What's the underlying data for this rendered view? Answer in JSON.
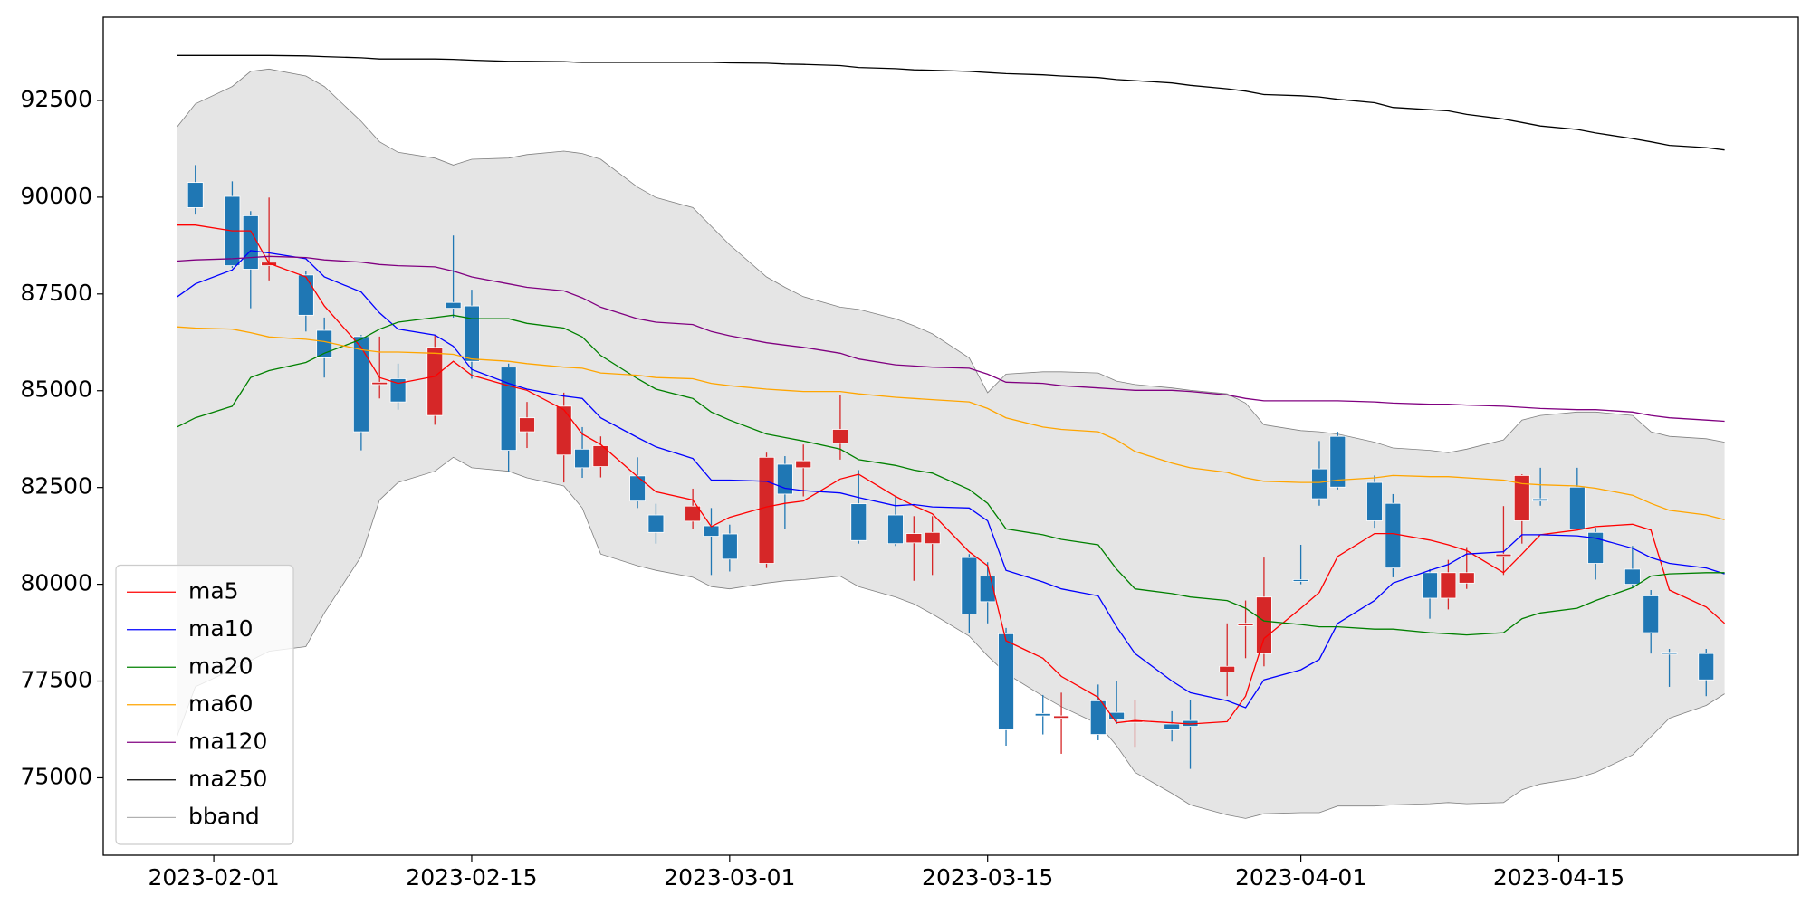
{
  "chart_data": {
    "type": "candlestick",
    "x": [
      "2023-01-30",
      "2023-01-31",
      "2023-02-02",
      "2023-02-03",
      "2023-02-04",
      "2023-02-06",
      "2023-02-07",
      "2023-02-09",
      "2023-02-10",
      "2023-02-11",
      "2023-02-13",
      "2023-02-14",
      "2023-02-15",
      "2023-02-17",
      "2023-02-18",
      "2023-02-20",
      "2023-02-21",
      "2023-02-22",
      "2023-02-24",
      "2023-02-25",
      "2023-02-27",
      "2023-02-28",
      "2023-03-01",
      "2023-03-03",
      "2023-03-04",
      "2023-03-05",
      "2023-03-07",
      "2023-03-08",
      "2023-03-10",
      "2023-03-11",
      "2023-03-12",
      "2023-03-14",
      "2023-03-15",
      "2023-03-16",
      "2023-03-18",
      "2023-03-19",
      "2023-03-21",
      "2023-03-22",
      "2023-03-23",
      "2023-03-25",
      "2023-03-26",
      "2023-03-28",
      "2023-03-29",
      "2023-03-30",
      "2023-04-01",
      "2023-04-02",
      "2023-04-03",
      "2023-04-05",
      "2023-04-06",
      "2023-04-08",
      "2023-04-09",
      "2023-04-10",
      "2023-04-12",
      "2023-04-13",
      "2023-04-14",
      "2023-04-16",
      "2023-04-17",
      "2023-04-19",
      "2023-04-20",
      "2023-04-21",
      "2023-04-23",
      "2023-04-24"
    ],
    "xlim": [
      "2023-01-26",
      "2023-04-28"
    ],
    "xticks": [
      "2023-02-01",
      "2023-02-15",
      "2023-03-01",
      "2023-03-15",
      "2023-04-01",
      "2023-04-15"
    ],
    "ylim": [
      73000,
      94650
    ],
    "yticks": [
      75000,
      77500,
      80000,
      82500,
      85000,
      87500,
      90000,
      92500
    ],
    "up_color": "#d62728",
    "down_color": "#1f77b4",
    "open": [
      null,
      90380,
      90020,
      89520,
      88230,
      87990,
      86560,
      86400,
      85160,
      85310,
      84360,
      87280,
      87190,
      85610,
      83940,
      83340,
      83490,
      83040,
      82800,
      81790,
      81630,
      81510,
      81300,
      80540,
      83100,
      83010,
      83640,
      82080,
      81790,
      81070,
      81050,
      80690,
      80210,
      78720,
      76660,
      76540,
      76990,
      76690,
      76450,
      76390,
      76480,
      77730,
      78930,
      78210,
      80120,
      82980,
      83820,
      82630,
      82090,
      80300,
      79640,
      80030,
      80720,
      81640,
      82210,
      82510,
      81340,
      80390,
      79700,
      78240,
      78210,
      null
    ],
    "high": [
      null,
      90830,
      90410,
      89640,
      89990,
      88090,
      86890,
      86440,
      86400,
      85700,
      86440,
      89010,
      87610,
      85700,
      84710,
      84950,
      84060,
      83820,
      83280,
      82080,
      82470,
      81970,
      81540,
      83400,
      83310,
      83610,
      84890,
      82950,
      82270,
      81760,
      81760,
      80780,
      80570,
      78870,
      77140,
      77200,
      77410,
      77500,
      77020,
      76720,
      77020,
      78990,
      79580,
      80690,
      81020,
      83700,
      83940,
      82810,
      82330,
      80390,
      80630,
      80960,
      82020,
      82840,
      83010,
      83010,
      81460,
      80990,
      79850,
      78330,
      78330,
      null
    ],
    "low": [
      null,
      89550,
      88170,
      87130,
      87850,
      86530,
      85340,
      83460,
      84800,
      84510,
      84120,
      86890,
      85310,
      82920,
      83520,
      82630,
      82750,
      82760,
      81970,
      81050,
      81420,
      80240,
      80330,
      80420,
      81420,
      82270,
      83220,
      81050,
      80990,
      80090,
      80240,
      78750,
      78990,
      75830,
      76120,
      75620,
      75970,
      76390,
      75800,
      75940,
      75230,
      77110,
      78090,
      77880,
      80000,
      82030,
      82450,
      81460,
      80180,
      79110,
      79350,
      79880,
      80240,
      81050,
      82030,
      81390,
      80120,
      79910,
      78210,
      77350,
      77110,
      null
    ],
    "close": [
      null,
      89730,
      88230,
      88140,
      88320,
      86950,
      85850,
      83940,
      85220,
      84710,
      86120,
      87130,
      85760,
      83460,
      84300,
      84600,
      83010,
      83580,
      82150,
      81340,
      82020,
      81240,
      80650,
      83280,
      82330,
      83190,
      84000,
      81130,
      81050,
      81310,
      81340,
      79230,
      79550,
      76240,
      76600,
      76600,
      76120,
      76510,
      76480,
      76240,
      76330,
      77880,
      78990,
      79670,
      80090,
      82210,
      82510,
      81640,
      80420,
      79640,
      80300,
      80300,
      80780,
      82810,
      82150,
      81420,
      80540,
      80000,
      78750,
      78210,
      77530,
      null
    ],
    "series": [
      {
        "name": "ma5",
        "color": "red",
        "values": [
          89280,
          89280,
          89130,
          89130,
          88290,
          87940,
          87190,
          86120,
          85340,
          85190,
          85370,
          85760,
          85400,
          85130,
          85010,
          84510,
          83880,
          83610,
          82780,
          82390,
          82180,
          81490,
          81730,
          82000,
          82090,
          82150,
          82720,
          82840,
          82270,
          82030,
          81820,
          80840,
          80480,
          78540,
          78090,
          77620,
          77080,
          76420,
          76480,
          76420,
          76390,
          76450,
          77110,
          78600,
          79380,
          79790,
          80720,
          81310,
          81310,
          81140,
          81020,
          80870,
          80300,
          80780,
          81280,
          81400,
          81490,
          81550,
          81400,
          79850,
          79410,
          78990
        ]
      },
      {
        "name": "ma10",
        "color": "blue",
        "values": [
          87420,
          87760,
          88120,
          88620,
          88560,
          88410,
          87940,
          87550,
          87010,
          86590,
          86440,
          86150,
          85550,
          85190,
          85040,
          84860,
          84800,
          84300,
          83790,
          83550,
          83250,
          82690,
          82690,
          82660,
          82480,
          82420,
          82360,
          82240,
          82030,
          82060,
          82000,
          81970,
          81640,
          80360,
          80060,
          79880,
          79700,
          78900,
          78210,
          77500,
          77200,
          76990,
          76810,
          77530,
          77790,
          78060,
          78990,
          79580,
          80030,
          80360,
          80510,
          80780,
          80840,
          81280,
          81280,
          81250,
          81190,
          80930,
          80690,
          80540,
          80420,
          80270
        ]
      },
      {
        "name": "ma20",
        "color": "green",
        "values": [
          84060,
          84300,
          84600,
          85340,
          85520,
          85730,
          85970,
          86330,
          86590,
          86770,
          86890,
          86950,
          86860,
          86860,
          86740,
          86620,
          86390,
          85910,
          85310,
          85040,
          84800,
          84450,
          84240,
          83880,
          83790,
          83700,
          83490,
          83220,
          83070,
          82950,
          82870,
          82450,
          82090,
          81430,
          81280,
          81160,
          81020,
          80390,
          79880,
          79760,
          79670,
          79580,
          79380,
          79050,
          78960,
          78900,
          78900,
          78840,
          78840,
          78750,
          78720,
          78690,
          78750,
          79110,
          79260,
          79380,
          79580,
          79910,
          80210,
          80270,
          80300,
          80300
        ]
      },
      {
        "name": "ma60",
        "color": "orange",
        "values": [
          86650,
          86620,
          86590,
          86500,
          86390,
          86330,
          86270,
          86060,
          86000,
          86000,
          85970,
          85940,
          85820,
          85760,
          85700,
          85610,
          85580,
          85460,
          85400,
          85340,
          85310,
          85190,
          85130,
          85040,
          85010,
          84980,
          84980,
          84920,
          84830,
          84800,
          84770,
          84710,
          84540,
          84300,
          84060,
          84000,
          83940,
          83730,
          83430,
          83130,
          83010,
          82890,
          82750,
          82660,
          82630,
          82630,
          82690,
          82750,
          82810,
          82780,
          82780,
          82750,
          82690,
          82600,
          82570,
          82540,
          82480,
          82300,
          82090,
          81910,
          81790,
          81670
        ]
      },
      {
        "name": "ma120",
        "color": "purple",
        "values": [
          88350,
          88380,
          88410,
          88440,
          88470,
          88440,
          88380,
          88320,
          88260,
          88230,
          88200,
          88090,
          87940,
          87760,
          87670,
          87580,
          87400,
          87160,
          86860,
          86770,
          86710,
          86530,
          86420,
          86240,
          86180,
          86120,
          85970,
          85820,
          85670,
          85640,
          85610,
          85580,
          85430,
          85220,
          85190,
          85130,
          85070,
          85040,
          85010,
          85010,
          84980,
          84890,
          84800,
          84740,
          84740,
          84740,
          84740,
          84710,
          84680,
          84650,
          84650,
          84630,
          84600,
          84570,
          84540,
          84510,
          84510,
          84450,
          84360,
          84300,
          84240,
          84210
        ]
      },
      {
        "name": "ma250",
        "color": "black",
        "values": [
          93660,
          93660,
          93660,
          93660,
          93660,
          93650,
          93630,
          93600,
          93570,
          93570,
          93570,
          93560,
          93540,
          93510,
          93510,
          93500,
          93480,
          93480,
          93480,
          93480,
          93480,
          93480,
          93470,
          93460,
          93440,
          93430,
          93400,
          93350,
          93320,
          93290,
          93280,
          93250,
          93220,
          93190,
          93160,
          93130,
          93090,
          93040,
          93010,
          92950,
          92890,
          92800,
          92740,
          92650,
          92620,
          92590,
          92530,
          92440,
          92320,
          92260,
          92230,
          92140,
          92020,
          91930,
          91840,
          91750,
          91660,
          91515,
          91430,
          91340,
          91280,
          91220
        ]
      }
    ],
    "band": {
      "name": "bband",
      "color": "gray",
      "fill": "#e5e5e5",
      "upper": [
        91810,
        92410,
        92860,
        93250,
        93310,
        93130,
        92860,
        91960,
        91430,
        91160,
        91010,
        90830,
        90980,
        91010,
        91100,
        91190,
        91130,
        90980,
        90260,
        89990,
        89730,
        89250,
        88770,
        87940,
        87670,
        87430,
        87160,
        87100,
        86860,
        86680,
        86470,
        85850,
        84950,
        85430,
        85490,
        85490,
        85460,
        85250,
        85160,
        85070,
        85010,
        84920,
        84680,
        84120,
        83970,
        83940,
        83880,
        83670,
        83520,
        83460,
        83400,
        83490,
        83730,
        84240,
        84360,
        84450,
        84450,
        84360,
        83940,
        83820,
        83760,
        83670
      ],
      "lower": [
        76060,
        77350,
        77790,
        78030,
        78270,
        78390,
        79260,
        80720,
        82180,
        82630,
        82920,
        83280,
        83010,
        82920,
        82750,
        82540,
        81970,
        80780,
        80480,
        80360,
        80180,
        79940,
        79880,
        80030,
        80090,
        80120,
        80210,
        79940,
        79670,
        79490,
        79230,
        78660,
        78150,
        77700,
        77110,
        76840,
        76390,
        75830,
        75140,
        74600,
        74300,
        74040,
        73950,
        74070,
        74100,
        74100,
        74270,
        74270,
        74300,
        74330,
        74360,
        74330,
        74360,
        74690,
        74840,
        74990,
        75140,
        75590,
        76060,
        76540,
        76870,
        77170
      ]
    },
    "legend": "lower left"
  }
}
